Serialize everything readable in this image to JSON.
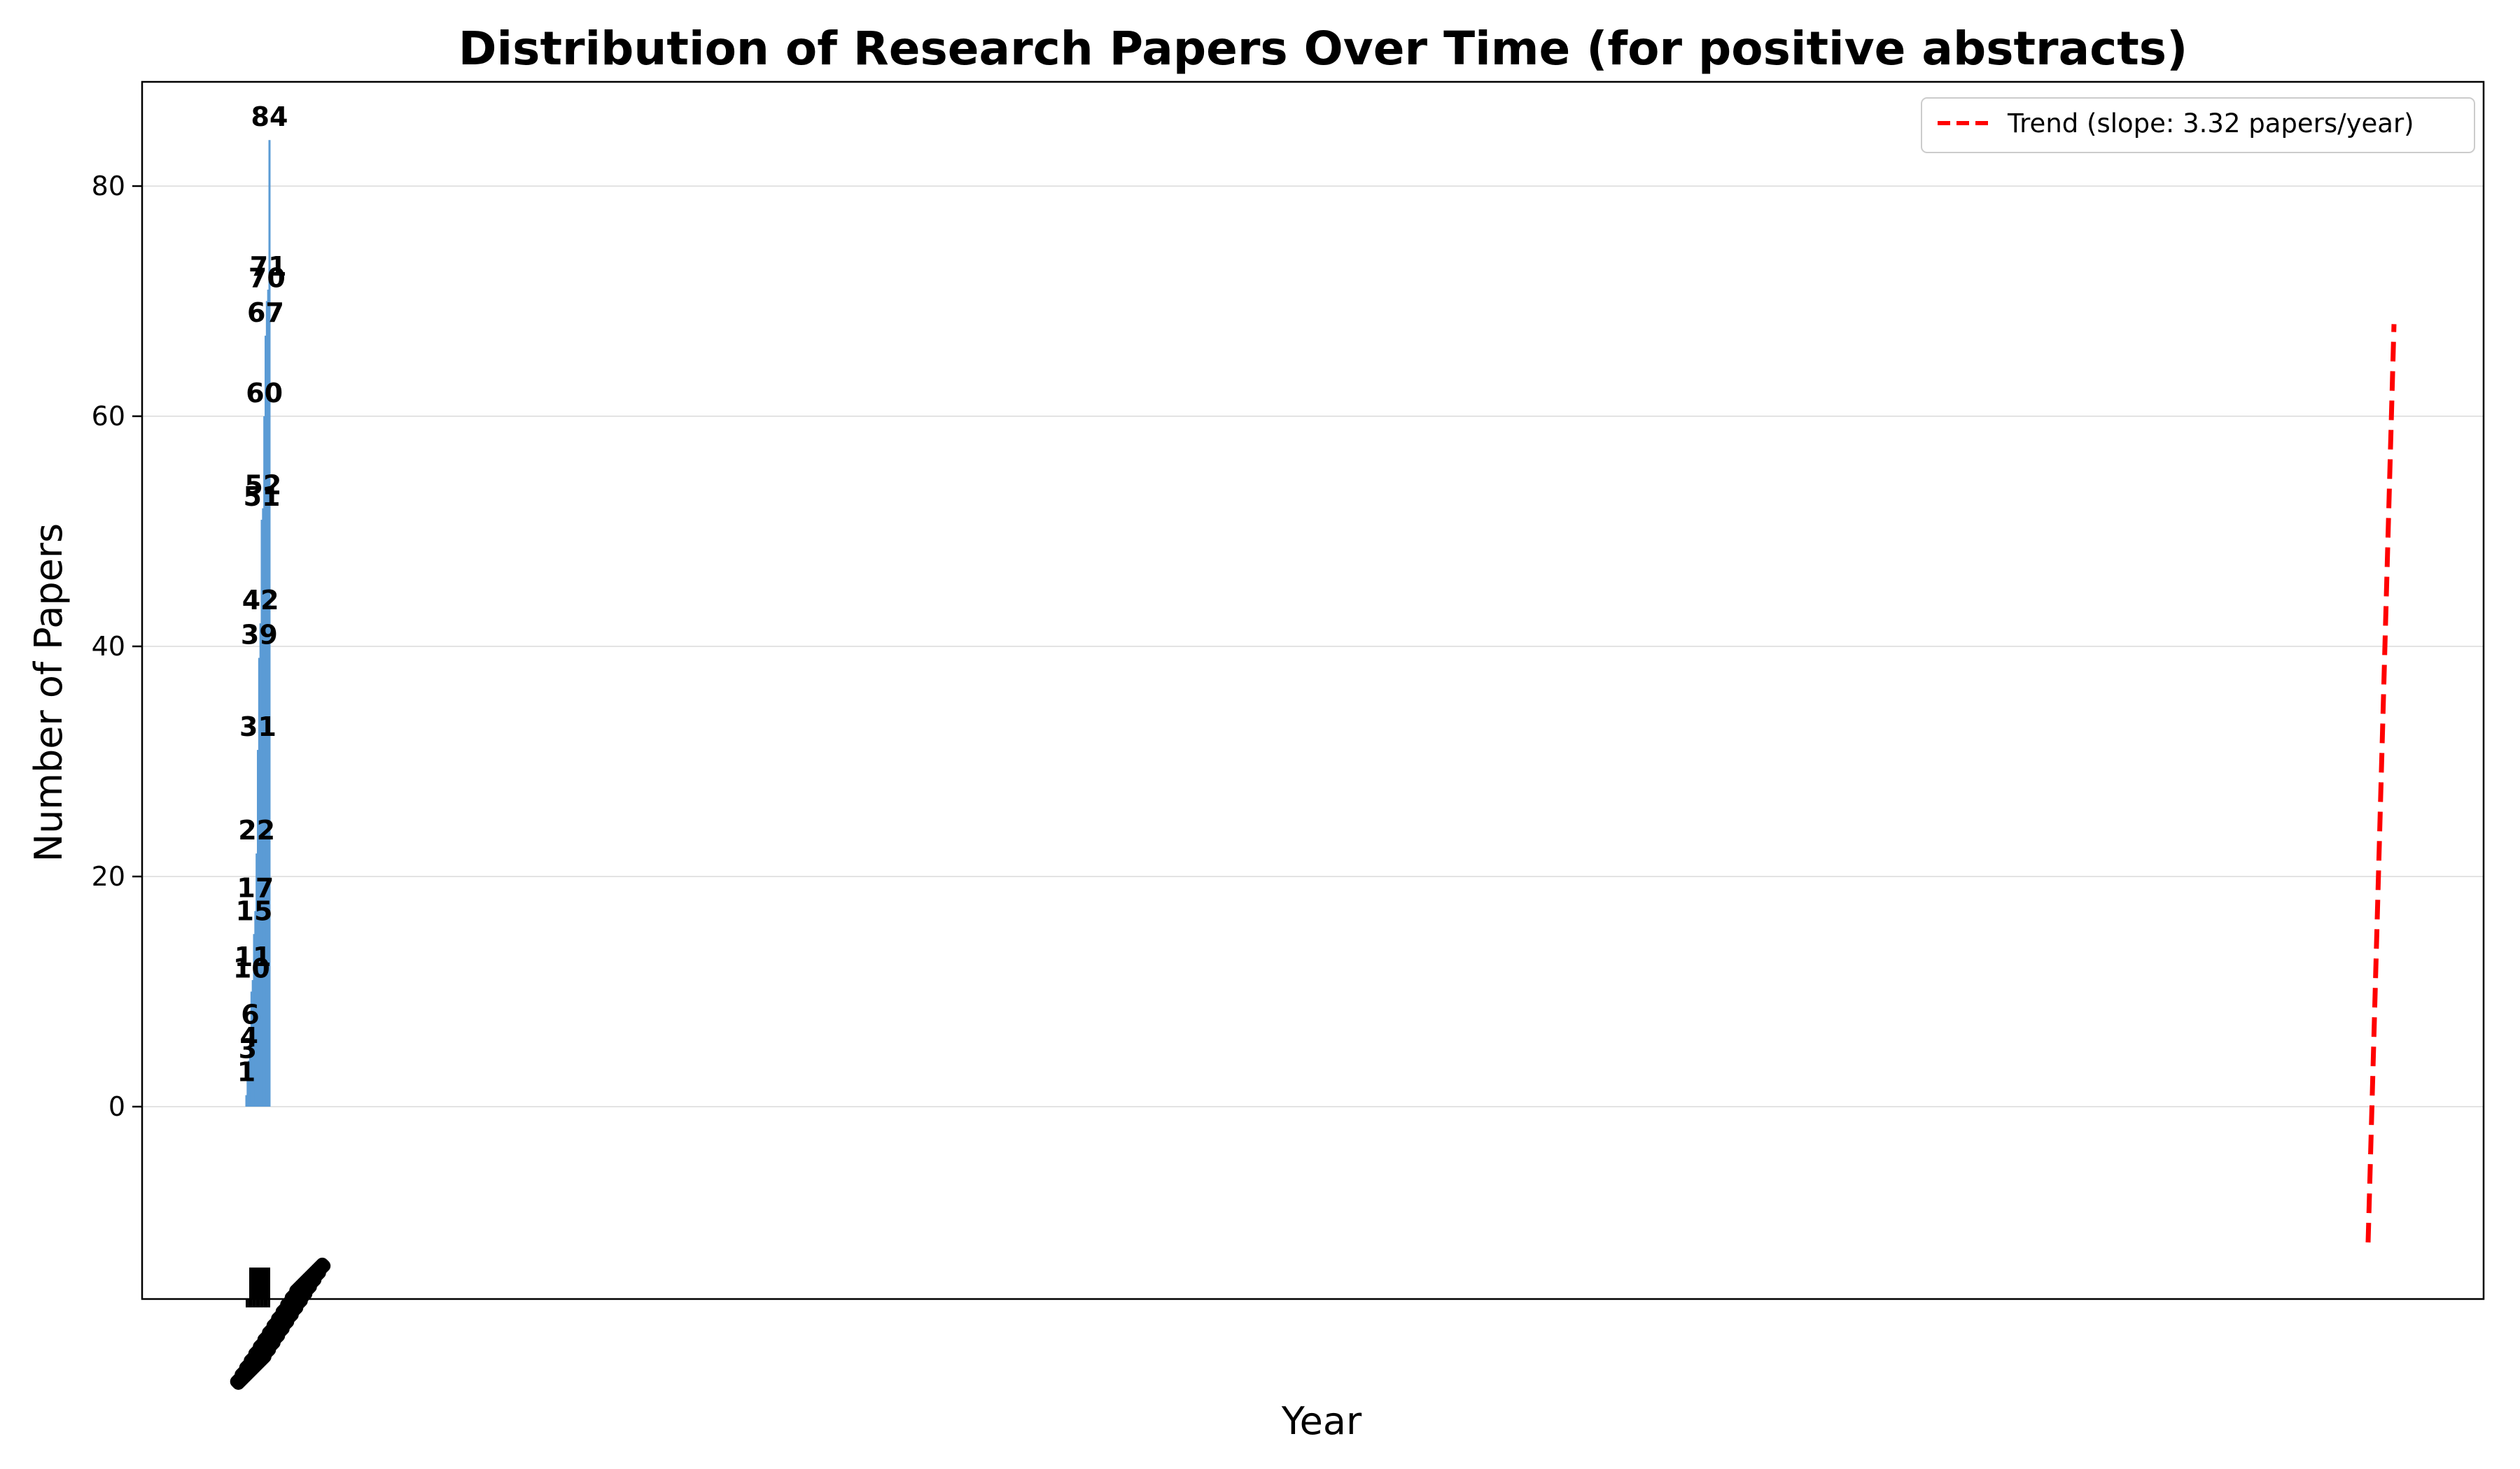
{
  "chart_data": {
    "type": "bar",
    "title": "Distribution of Research Papers Over Time (for positive abstracts)",
    "xlabel": "Year",
    "ylabel": "Number of Papers",
    "ylim": [
      -16.7,
      88.5
    ],
    "yticks": [
      0,
      20,
      40,
      60,
      80
    ],
    "grid": "y",
    "legend_position": "top-right",
    "bar_color": "#5b9bd5",
    "values": [
      1,
      3,
      4,
      6,
      10,
      11,
      15,
      17,
      22,
      31,
      39,
      42,
      51,
      52,
      60,
      67,
      70,
      71,
      84
    ],
    "series": [
      {
        "name": "Trend (slope: 3.32 papers/year)",
        "type": "line",
        "style": "dashed",
        "color": "#ff0000",
        "y": [
          -11.8,
          68.0
        ]
      }
    ]
  }
}
